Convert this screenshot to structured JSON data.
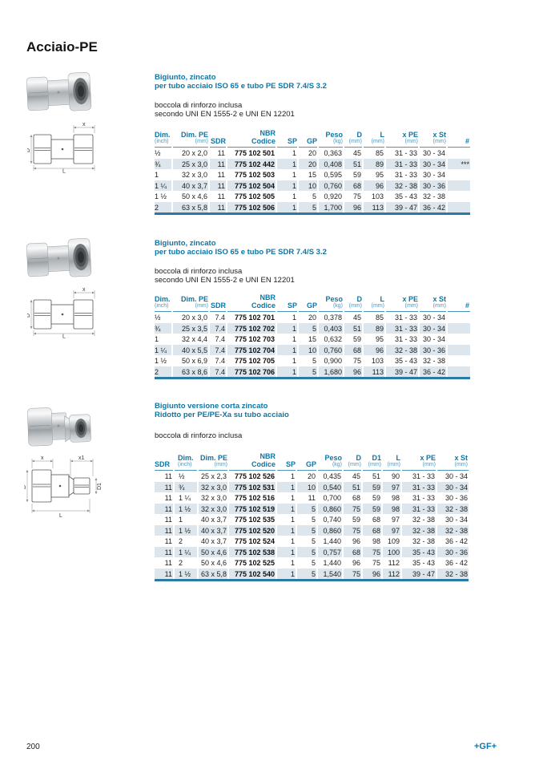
{
  "page": {
    "title": "Acciaio-PE",
    "page_number": "200",
    "brand": "+GF+"
  },
  "colors": {
    "accent": "#0e76a4",
    "unit_blue": "#4f95ba",
    "row_shade": "#dce6ec",
    "table_rule": "#2b7aa6"
  },
  "sections": [
    {
      "heading_line1": "Bigiunto, zincato",
      "heading_line2": "per tubo acciaio ISO 65 e tubo PE SDR 7.4/S 3.2",
      "note_line1": "boccola di rinforzo inclusa",
      "note_line2": "secondo UNI EN 1555-2 e UNI EN 12201",
      "drawing": {
        "top": "x",
        "left": "D",
        "bottom": "L"
      },
      "table": {
        "columns": [
          {
            "label": "Dim.",
            "sub": "(inch)",
            "align": "left"
          },
          {
            "label": "Dim. PE",
            "sub": "(mm)",
            "align": "right"
          },
          {
            "label": "SDR",
            "sub": "",
            "align": "right"
          },
          {
            "label": "NBR",
            "sub": "Codice",
            "sub_bold": true,
            "align": "right",
            "bold_values": true
          },
          {
            "label": "SP",
            "sub": "",
            "align": "right"
          },
          {
            "label": "GP",
            "sub": "",
            "align": "right"
          },
          {
            "label": "Peso",
            "sub": "(kg)",
            "align": "right"
          },
          {
            "label": "D",
            "sub": "(mm)",
            "align": "right"
          },
          {
            "label": "L",
            "sub": "(mm)",
            "align": "right"
          },
          {
            "label": "x PE",
            "sub": "(mm)",
            "align": "right"
          },
          {
            "label": "x St",
            "sub": "(mm)",
            "align": "right"
          },
          {
            "label": "#",
            "sub": "",
            "align": "right"
          }
        ],
        "rows": [
          [
            "½",
            "20 x 2,0",
            "11",
            "775 102 501",
            "1",
            "20",
            "0,363",
            "45",
            "85",
            "31 - 33",
            "30 - 34",
            ""
          ],
          [
            "¾",
            "25 x 3,0",
            "11",
            "775 102 442",
            "1",
            "20",
            "0,408",
            "51",
            "89",
            "31 - 33",
            "30 - 34",
            "***"
          ],
          [
            "1",
            "32 x 3,0",
            "11",
            "775 102 503",
            "1",
            "15",
            "0,595",
            "59",
            "95",
            "31 - 33",
            "30 - 34",
            ""
          ],
          [
            "1 ¼",
            "40 x 3,7",
            "11",
            "775 102 504",
            "1",
            "10",
            "0,760",
            "68",
            "96",
            "32 - 38",
            "30 - 36",
            ""
          ],
          [
            "1 ½",
            "50 x 4,6",
            "11",
            "775 102 505",
            "1",
            "5",
            "0,920",
            "75",
            "103",
            "35 - 43",
            "32 - 38",
            ""
          ],
          [
            "2",
            "63 x 5,8",
            "11",
            "775 102 506",
            "1",
            "5",
            "1,700",
            "96",
            "113",
            "39 - 47",
            "36 - 42",
            ""
          ]
        ]
      }
    },
    {
      "heading_line1": "Bigiunto, zincato",
      "heading_line2": "per tubo acciaio ISO 65 e tubo PE SDR 7.4/S 3.2",
      "note_line1": "boccola di rinforzo inclusa",
      "note_line2": "secondo UNI EN 1555-2 e UNI EN 12201",
      "drawing": {
        "top": "x",
        "left": "D",
        "bottom": "L"
      },
      "table": {
        "columns": [
          {
            "label": "Dim.",
            "sub": "(inch)",
            "align": "left"
          },
          {
            "label": "Dim. PE",
            "sub": "(mm)",
            "align": "right"
          },
          {
            "label": "SDR",
            "sub": "",
            "align": "right"
          },
          {
            "label": "NBR",
            "sub": "Codice",
            "sub_bold": true,
            "align": "right",
            "bold_values": true
          },
          {
            "label": "SP",
            "sub": "",
            "align": "right"
          },
          {
            "label": "GP",
            "sub": "",
            "align": "right"
          },
          {
            "label": "Peso",
            "sub": "(kg)",
            "align": "right"
          },
          {
            "label": "D",
            "sub": "(mm)",
            "align": "right"
          },
          {
            "label": "L",
            "sub": "(mm)",
            "align": "right"
          },
          {
            "label": "x PE",
            "sub": "(mm)",
            "align": "right"
          },
          {
            "label": "x St",
            "sub": "(mm)",
            "align": "right"
          },
          {
            "label": "#",
            "sub": "",
            "align": "right"
          }
        ],
        "rows": [
          [
            "½",
            "20 x 3,0",
            "7.4",
            "775 102 701",
            "1",
            "20",
            "0,378",
            "45",
            "85",
            "31 - 33",
            "30 - 34",
            ""
          ],
          [
            "¾",
            "25 x 3,5",
            "7.4",
            "775 102 702",
            "1",
            "5",
            "0,403",
            "51",
            "89",
            "31 - 33",
            "30 - 34",
            ""
          ],
          [
            "1",
            "32 x 4,4",
            "7.4",
            "775 102 703",
            "1",
            "15",
            "0,632",
            "59",
            "95",
            "31 - 33",
            "30 - 34",
            ""
          ],
          [
            "1 ¼",
            "40 x 5,5",
            "7.4",
            "775 102 704",
            "1",
            "10",
            "0,760",
            "68",
            "96",
            "32 - 38",
            "30 - 36",
            ""
          ],
          [
            "1 ½",
            "50 x 6,9",
            "7.4",
            "775 102 705",
            "1",
            "5",
            "0,900",
            "75",
            "103",
            "35 - 43",
            "32 - 38",
            ""
          ],
          [
            "2",
            "63 x 8,6",
            "7.4",
            "775 102 706",
            "1",
            "5",
            "1,680",
            "96",
            "113",
            "39 - 47",
            "36 - 42",
            ""
          ]
        ]
      }
    },
    {
      "heading_line1": "Bigiunto versione corta zincato",
      "heading_line2": "Ridotto per PE/PE-Xa su tubo acciaio",
      "note_line1": "boccola di rinforzo inclusa",
      "note_line2": "",
      "drawing": {
        "top_left": "x",
        "top_right": "x1",
        "left": "D",
        "right": "D1",
        "bottom": "L"
      },
      "table": {
        "columns": [
          {
            "label": "SDR",
            "sub": "",
            "align": "right",
            "head_align": "left"
          },
          {
            "label": "Dim.",
            "sub": "(inch)",
            "align": "left",
            "indent": true
          },
          {
            "label": "Dim. PE",
            "sub": "(mm)",
            "align": "right"
          },
          {
            "label": "NBR",
            "sub": "Codice",
            "sub_bold": true,
            "align": "right",
            "bold_values": true
          },
          {
            "label": "SP",
            "sub": "",
            "align": "right"
          },
          {
            "label": "GP",
            "sub": "",
            "align": "right"
          },
          {
            "label": "Peso",
            "sub": "(kg)",
            "align": "right"
          },
          {
            "label": "D",
            "sub": "(mm)",
            "align": "right"
          },
          {
            "label": "D1",
            "sub": "(mm)",
            "align": "right"
          },
          {
            "label": "L",
            "sub": "(mm)",
            "align": "right"
          },
          {
            "label": "x PE",
            "sub": "(mm)",
            "align": "right"
          },
          {
            "label": "x St",
            "sub": "(mm)",
            "align": "right"
          }
        ],
        "rows": [
          [
            "11",
            "½",
            "25 x 2,3",
            "775 102 526",
            "1",
            "20",
            "0,435",
            "45",
            "51",
            "90",
            "31 - 33",
            "30 - 34"
          ],
          [
            "11",
            "¾",
            "32 x 3,0",
            "775 102 531",
            "1",
            "10",
            "0,540",
            "51",
            "59",
            "97",
            "31 - 33",
            "30 - 34"
          ],
          [
            "11",
            "1 ¼",
            "32 x 3,0",
            "775 102 516",
            "1",
            "11",
            "0,700",
            "68",
            "59",
            "98",
            "31 - 33",
            "30 - 36"
          ],
          [
            "11",
            "1 ½",
            "32 x 3,0",
            "775 102 519",
            "1",
            "5",
            "0,860",
            "75",
            "59",
            "98",
            "31 - 33",
            "32 - 38"
          ],
          [
            "11",
            "1",
            "40 x 3,7",
            "775 102 535",
            "1",
            "5",
            "0,740",
            "59",
            "68",
            "97",
            "32 - 38",
            "30 - 34"
          ],
          [
            "11",
            "1 ½",
            "40 x 3,7",
            "775 102 520",
            "1",
            "5",
            "0,860",
            "75",
            "68",
            "97",
            "32 - 38",
            "32 - 38"
          ],
          [
            "11",
            "2",
            "40 x 3,7",
            "775 102 524",
            "1",
            "5",
            "1,440",
            "96",
            "98",
            "109",
            "32 - 38",
            "36 - 42"
          ],
          [
            "11",
            "1 ¼",
            "50 x 4,6",
            "775 102 538",
            "1",
            "5",
            "0,757",
            "68",
            "75",
            "100",
            "35 - 43",
            "30 - 36"
          ],
          [
            "11",
            "2",
            "50 x 4,6",
            "775 102 525",
            "1",
            "5",
            "1,440",
            "96",
            "75",
            "112",
            "35 - 43",
            "36 - 42"
          ],
          [
            "11",
            "1 ½",
            "63 x 5,8",
            "775 102 540",
            "1",
            "5",
            "1,540",
            "75",
            "96",
            "112",
            "39 - 47",
            "32 - 38"
          ]
        ]
      }
    }
  ]
}
